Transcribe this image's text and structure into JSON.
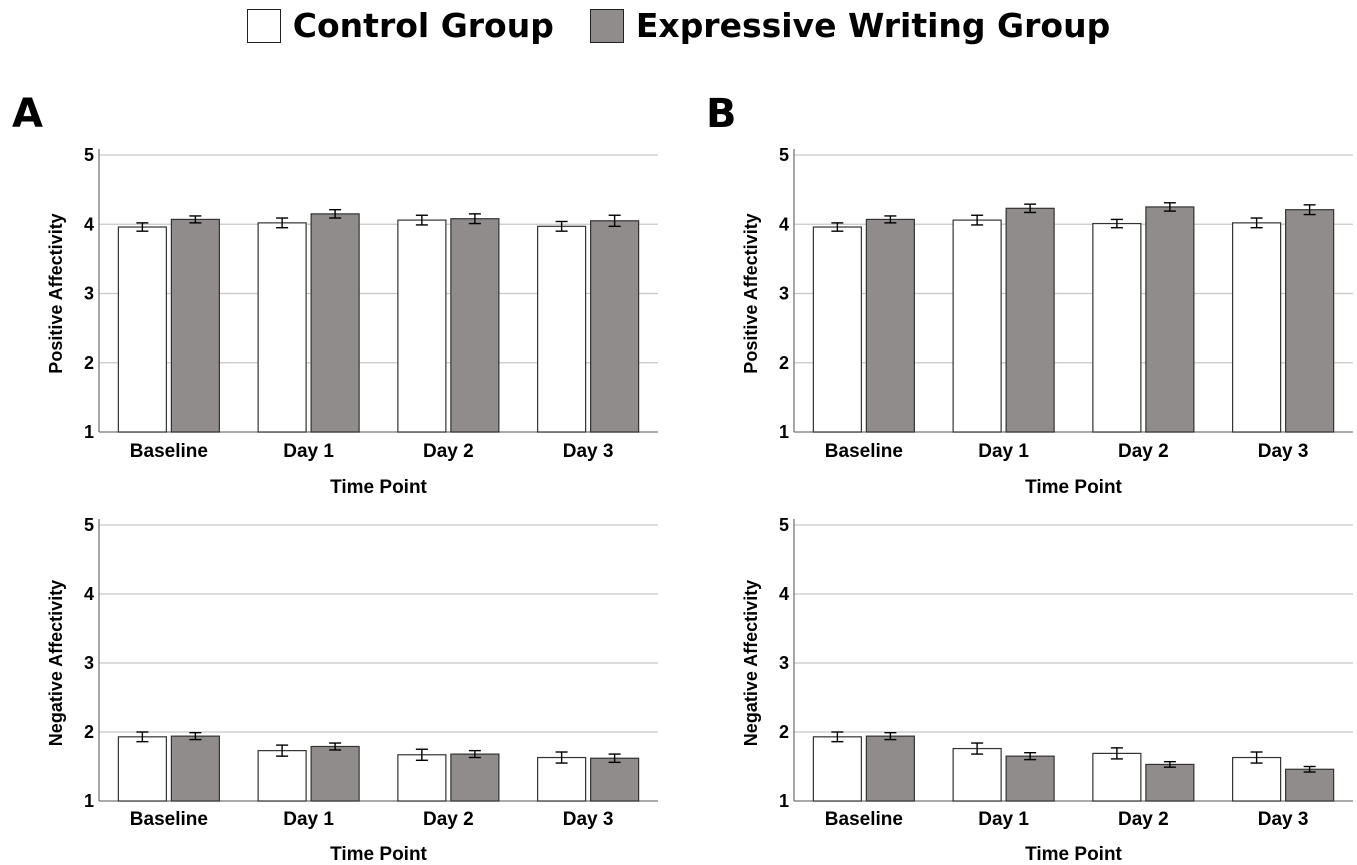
{
  "legend": {
    "items": [
      {
        "label": "Control Group",
        "color": "#ffffff"
      },
      {
        "label": "Expressive Writing Group",
        "color": "#8f8c8b"
      }
    ]
  },
  "panels": {
    "a_label": "A",
    "b_label": "B"
  },
  "colors": {
    "control": "#ffffff",
    "expressive": "#8f8c8b",
    "grid": "#c8c8c8",
    "axis": "#777777",
    "bar_edge": "#333333"
  },
  "chart_data": [
    {
      "type": "bar",
      "panel": "A",
      "categories": [
        "Baseline",
        "Day 1",
        "Day 2",
        "Day 3"
      ],
      "xlabel": "Time Point",
      "ylabel": "Positive Affectivity",
      "ylim": [
        1,
        5
      ],
      "yticks": [
        1,
        2,
        3,
        4,
        5
      ],
      "grid": true,
      "series": [
        {
          "name": "Control Group",
          "values": [
            3.96,
            4.02,
            4.06,
            3.97
          ],
          "errors": [
            0.06,
            0.07,
            0.07,
            0.07
          ]
        },
        {
          "name": "Expressive Writing Group",
          "values": [
            4.07,
            4.15,
            4.08,
            4.05
          ],
          "errors": [
            0.05,
            0.06,
            0.07,
            0.08
          ]
        }
      ]
    },
    {
      "type": "bar",
      "panel": "B",
      "categories": [
        "Baseline",
        "Day 1",
        "Day 2",
        "Day 3"
      ],
      "xlabel": "Time Point",
      "ylabel": "Positive Affectivity",
      "ylim": [
        1,
        5
      ],
      "yticks": [
        1,
        2,
        3,
        4,
        5
      ],
      "grid": true,
      "series": [
        {
          "name": "Control Group",
          "values": [
            3.96,
            4.06,
            4.01,
            4.02
          ],
          "errors": [
            0.06,
            0.07,
            0.06,
            0.07
          ]
        },
        {
          "name": "Expressive Writing Group",
          "values": [
            4.07,
            4.23,
            4.25,
            4.21
          ],
          "errors": [
            0.05,
            0.06,
            0.06,
            0.07
          ]
        }
      ]
    },
    {
      "type": "bar",
      "panel": "A",
      "categories": [
        "Baseline",
        "Day 1",
        "Day 2",
        "Day 3"
      ],
      "xlabel": "Time Point",
      "ylabel": "Negative Affectivity",
      "ylim": [
        1,
        5
      ],
      "yticks": [
        1,
        2,
        3,
        4,
        5
      ],
      "grid": true,
      "series": [
        {
          "name": "Control Group",
          "values": [
            1.93,
            1.73,
            1.67,
            1.63
          ],
          "errors": [
            0.07,
            0.08,
            0.08,
            0.08
          ]
        },
        {
          "name": "Expressive Writing Group",
          "values": [
            1.94,
            1.79,
            1.68,
            1.62
          ],
          "errors": [
            0.05,
            0.05,
            0.05,
            0.06
          ]
        }
      ]
    },
    {
      "type": "bar",
      "panel": "B",
      "categories": [
        "Baseline",
        "Day 1",
        "Day 2",
        "Day 3"
      ],
      "xlabel": "Time Point",
      "ylabel": "Negative Affectivity",
      "ylim": [
        1,
        5
      ],
      "yticks": [
        1,
        2,
        3,
        4,
        5
      ],
      "grid": true,
      "series": [
        {
          "name": "Control Group",
          "values": [
            1.93,
            1.76,
            1.69,
            1.63
          ],
          "errors": [
            0.07,
            0.08,
            0.08,
            0.08
          ]
        },
        {
          "name": "Expressive Writing Group",
          "values": [
            1.94,
            1.65,
            1.53,
            1.46
          ],
          "errors": [
            0.05,
            0.05,
            0.04,
            0.04
          ]
        }
      ]
    }
  ]
}
